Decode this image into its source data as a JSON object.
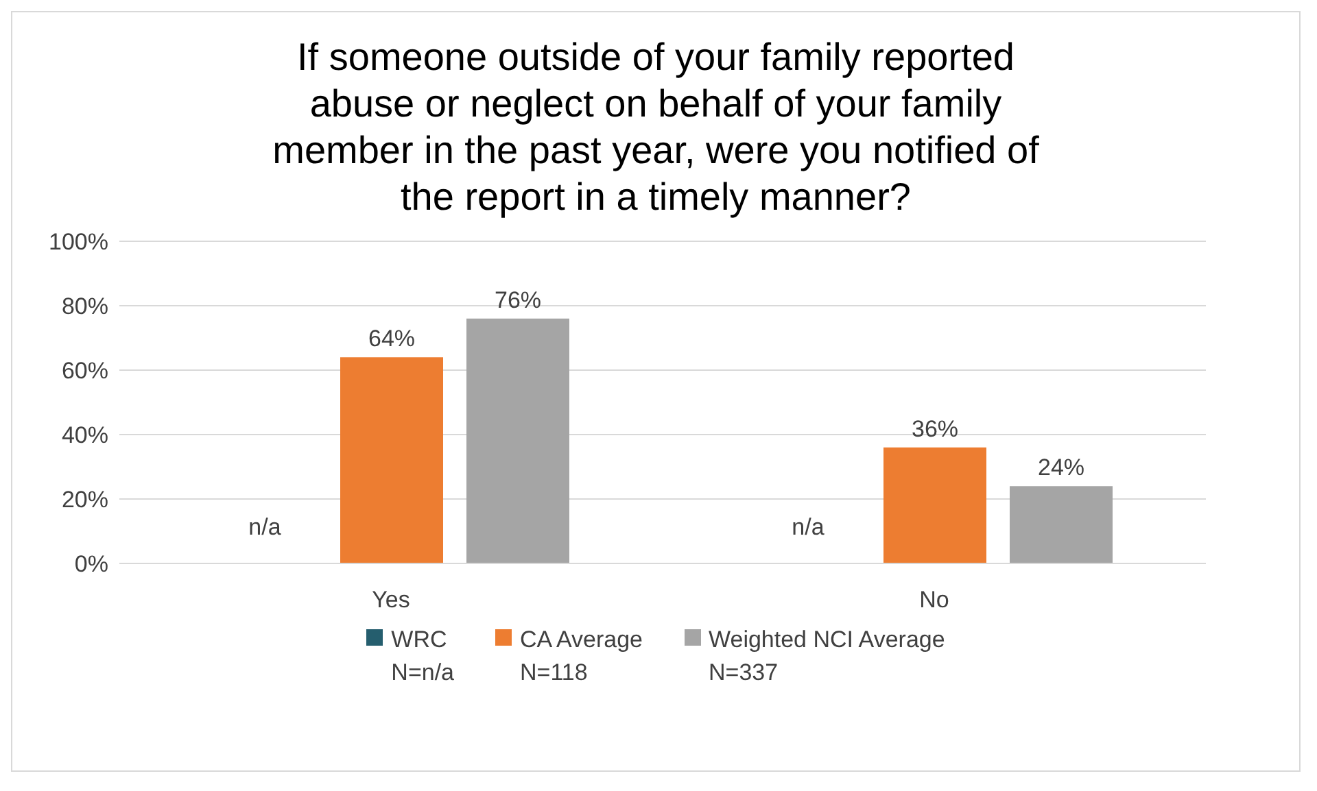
{
  "chart_data": {
    "type": "bar",
    "title": "If someone outside of your family reported abuse or neglect on behalf of your family member in the past year, were you notified of the report in a timely manner?",
    "categories": [
      "Yes",
      "No"
    ],
    "series": [
      {
        "name": "WRC\nN=n/a",
        "color": "#255e6e",
        "values": [
          null,
          null
        ],
        "value_labels": [
          "n/a",
          "n/a"
        ]
      },
      {
        "name": "CA Average\nN=118",
        "color": "#ed7d31",
        "values": [
          64,
          36
        ],
        "value_labels": [
          "64%",
          "36%"
        ]
      },
      {
        "name": "Weighted NCI Average\nN=337",
        "color": "#a5a5a5",
        "values": [
          76,
          24
        ],
        "value_labels": [
          "76%",
          "24%"
        ]
      }
    ],
    "ylim": [
      0,
      100
    ],
    "yticks": [
      {
        "value": 0,
        "label": "0%"
      },
      {
        "value": 20,
        "label": "20%"
      },
      {
        "value": 40,
        "label": "40%"
      },
      {
        "value": 60,
        "label": "60%"
      },
      {
        "value": 80,
        "label": "80%"
      },
      {
        "value": 100,
        "label": "100%"
      }
    ],
    "grid": "y",
    "legend": "bottom"
  }
}
